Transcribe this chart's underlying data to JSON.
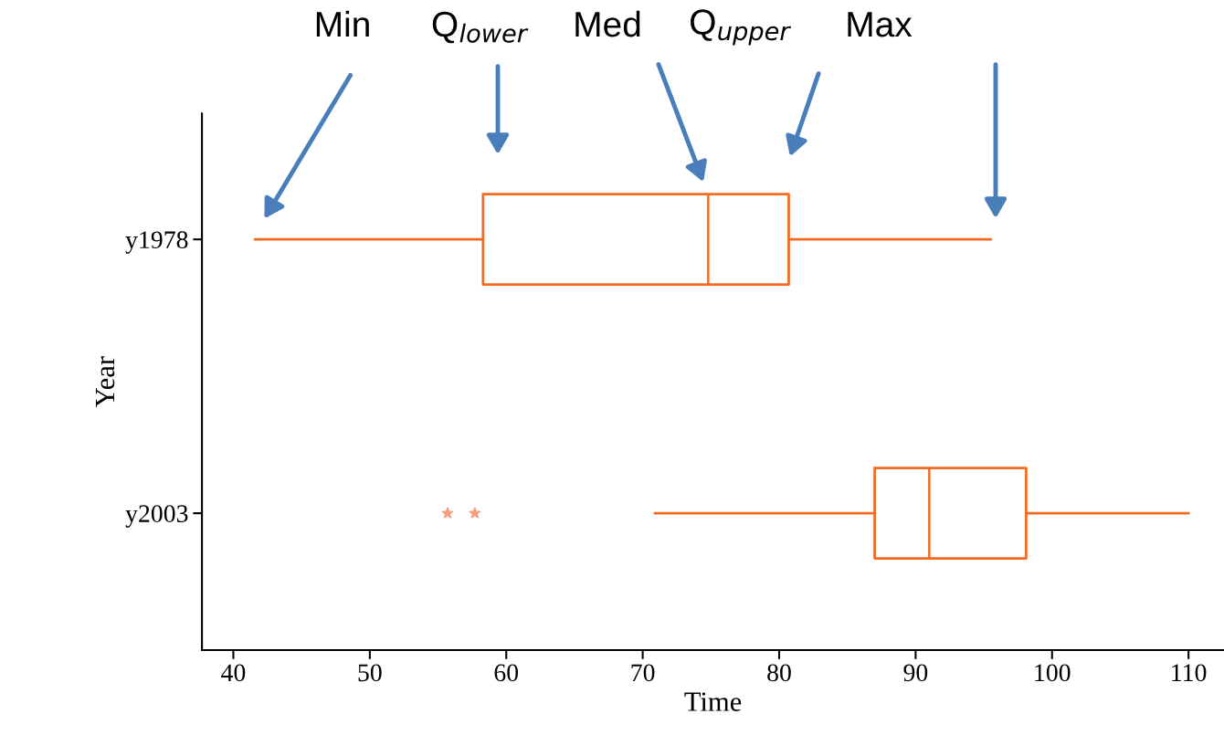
{
  "chart_data": {
    "type": "box",
    "orientation": "horizontal",
    "color": "#f26b21",
    "xlabel": "Time",
    "ylabel": "Year",
    "categories": [
      "y1978",
      "y2003"
    ],
    "boxes": [
      {
        "low": 41.6,
        "q1": 58.3,
        "median": 74.8,
        "q3": 80.7,
        "high": 95.5
      },
      {
        "low": 70.9,
        "q1": 87.0,
        "median": 91.0,
        "q3": 98.1,
        "high": 110,
        "outliers": [
          55.7,
          57.7
        ]
      }
    ],
    "xlim": [
      37.7,
      112.6
    ],
    "xticks": [
      40,
      50,
      60,
      70,
      80,
      90,
      100,
      110
    ],
    "annotations": [
      "Min",
      "Q$_{lower}$",
      "Med",
      "Q$_{upper}$",
      "Max"
    ]
  }
}
